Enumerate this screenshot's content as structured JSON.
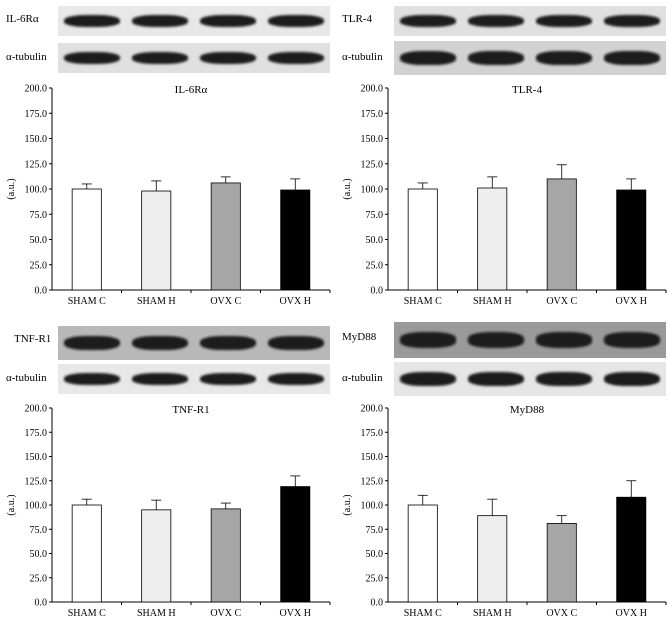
{
  "panels": [
    {
      "id": "il6ra",
      "blot_labels": {
        "target": "IL-6Rα",
        "loading": "α-tubulin"
      },
      "chart_data": {
        "type": "bar",
        "title": "IL-6Rα",
        "ylabel": "(a.u.)",
        "ylim": [
          0,
          200
        ],
        "yticks": [
          "0.0",
          "25.0",
          "50.0",
          "75.0",
          "100.0",
          "125.0",
          "150.0",
          "175.0",
          "200.0"
        ],
        "categories": [
          "SHAM C",
          "SHAM H",
          "OVX C",
          "OVX H"
        ],
        "values": [
          100,
          98,
          106,
          99
        ],
        "errors": [
          5,
          10,
          6,
          11
        ],
        "colors": [
          "#ffffff",
          "#eeeeee",
          "#a6a6a6",
          "#000000"
        ]
      }
    },
    {
      "id": "tlr4",
      "blot_labels": {
        "target": "TLR-4",
        "loading": "α-tubulin"
      },
      "chart_data": {
        "type": "bar",
        "title": "TLR-4",
        "ylabel": "(a.u.)",
        "ylim": [
          0,
          200
        ],
        "yticks": [
          "0.0",
          "25.0",
          "50.0",
          "75.0",
          "100.0",
          "125.0",
          "150.0",
          "175.0",
          "200.0"
        ],
        "categories": [
          "SHAM C",
          "SHAM H",
          "OVX C",
          "OVX H"
        ],
        "values": [
          100,
          101,
          110,
          99
        ],
        "errors": [
          6,
          11,
          14,
          11
        ],
        "colors": [
          "#ffffff",
          "#eeeeee",
          "#a6a6a6",
          "#000000"
        ]
      }
    },
    {
      "id": "tnfr1",
      "blot_labels": {
        "target": "TNF-R1",
        "loading": "α-tubulin"
      },
      "chart_data": {
        "type": "bar",
        "title": "TNF-R1",
        "ylabel": "(a.u.)",
        "ylim": [
          0,
          200
        ],
        "yticks": [
          "0.0",
          "25.0",
          "50.0",
          "75.0",
          "100.0",
          "125.0",
          "150.0",
          "175.0",
          "200.0"
        ],
        "categories": [
          "SHAM C",
          "SHAM H",
          "OVX C",
          "OVX H"
        ],
        "values": [
          100,
          95,
          96,
          119
        ],
        "errors": [
          6,
          10,
          6,
          11
        ],
        "colors": [
          "#ffffff",
          "#eeeeee",
          "#a6a6a6",
          "#000000"
        ]
      }
    },
    {
      "id": "myd88",
      "blot_labels": {
        "target": "MyD88",
        "loading": "α-tubulin"
      },
      "chart_data": {
        "type": "bar",
        "title": "MyD88",
        "ylabel": "(a.u.)",
        "ylim": [
          0,
          200
        ],
        "yticks": [
          "0.0",
          "25.0",
          "50.0",
          "75.0",
          "100.0",
          "125.0",
          "150.0",
          "175.0",
          "200.0"
        ],
        "categories": [
          "SHAM C",
          "SHAM H",
          "OVX C",
          "OVX H"
        ],
        "values": [
          100,
          89,
          81,
          108
        ],
        "errors": [
          10,
          17,
          8,
          17
        ],
        "colors": [
          "#ffffff",
          "#eeeeee",
          "#a6a6a6",
          "#000000"
        ]
      }
    }
  ]
}
